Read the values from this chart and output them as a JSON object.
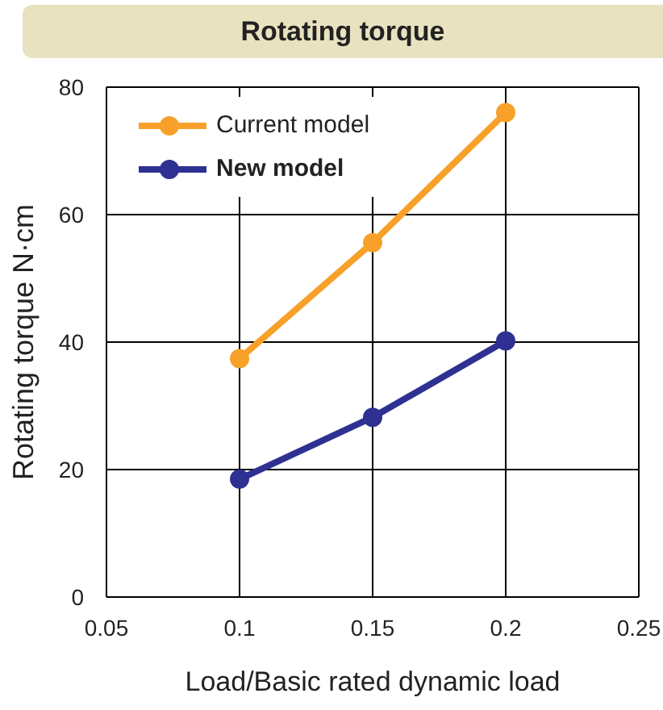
{
  "chart_data": {
    "type": "line",
    "title": "Rotating torque",
    "xlabel": "Load/Basic rated dynamic load",
    "ylabel": "Rotating torque  N·cm",
    "x": [
      0.1,
      0.15,
      0.2
    ],
    "series": [
      {
        "name": "Current model",
        "color": "#f7a12a",
        "values": [
          37.4,
          55.6,
          76
        ]
      },
      {
        "name": "New model",
        "color": "#2e3192",
        "values": [
          18.5,
          28.2,
          40.2
        ]
      }
    ],
    "xlim": [
      0.05,
      0.25
    ],
    "xticks": [
      0.05,
      0.1,
      0.15,
      0.2,
      0.25
    ],
    "ylim": [
      0,
      80
    ],
    "yticks": [
      0,
      20,
      40,
      60,
      80
    ],
    "grid": true,
    "legend": "top left",
    "marker": "circle",
    "line_style": "solid"
  }
}
